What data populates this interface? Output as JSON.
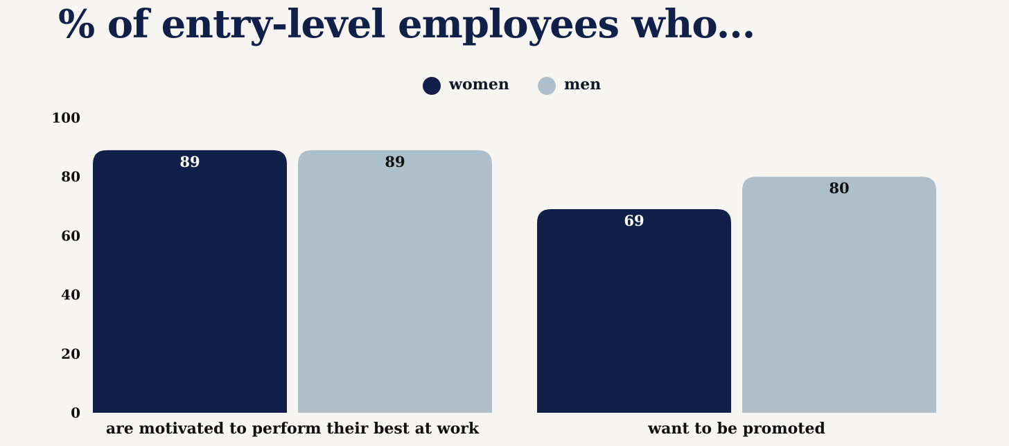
{
  "title": "% of entry-level employees who...",
  "legend": [
    {
      "name": "women",
      "color": "#112048"
    },
    {
      "name": "men",
      "color": "#aebfcc"
    }
  ],
  "chart_data": {
    "type": "bar",
    "title": "% of entry-level employees who...",
    "categories": [
      "are motivated to perform their best at work",
      "want to be promoted"
    ],
    "series": [
      {
        "name": "women",
        "color": "#112048",
        "label_color": "#ffffff",
        "values": [
          89,
          69
        ]
      },
      {
        "name": "men",
        "color": "#aebfcc",
        "label_color": "#111111",
        "values": [
          89,
          80
        ]
      }
    ],
    "ylim": [
      0,
      100
    ],
    "yticks": [
      0,
      20,
      40,
      60,
      80,
      100
    ],
    "grid": false,
    "legend_position": "top-center",
    "data_labels": true
  }
}
